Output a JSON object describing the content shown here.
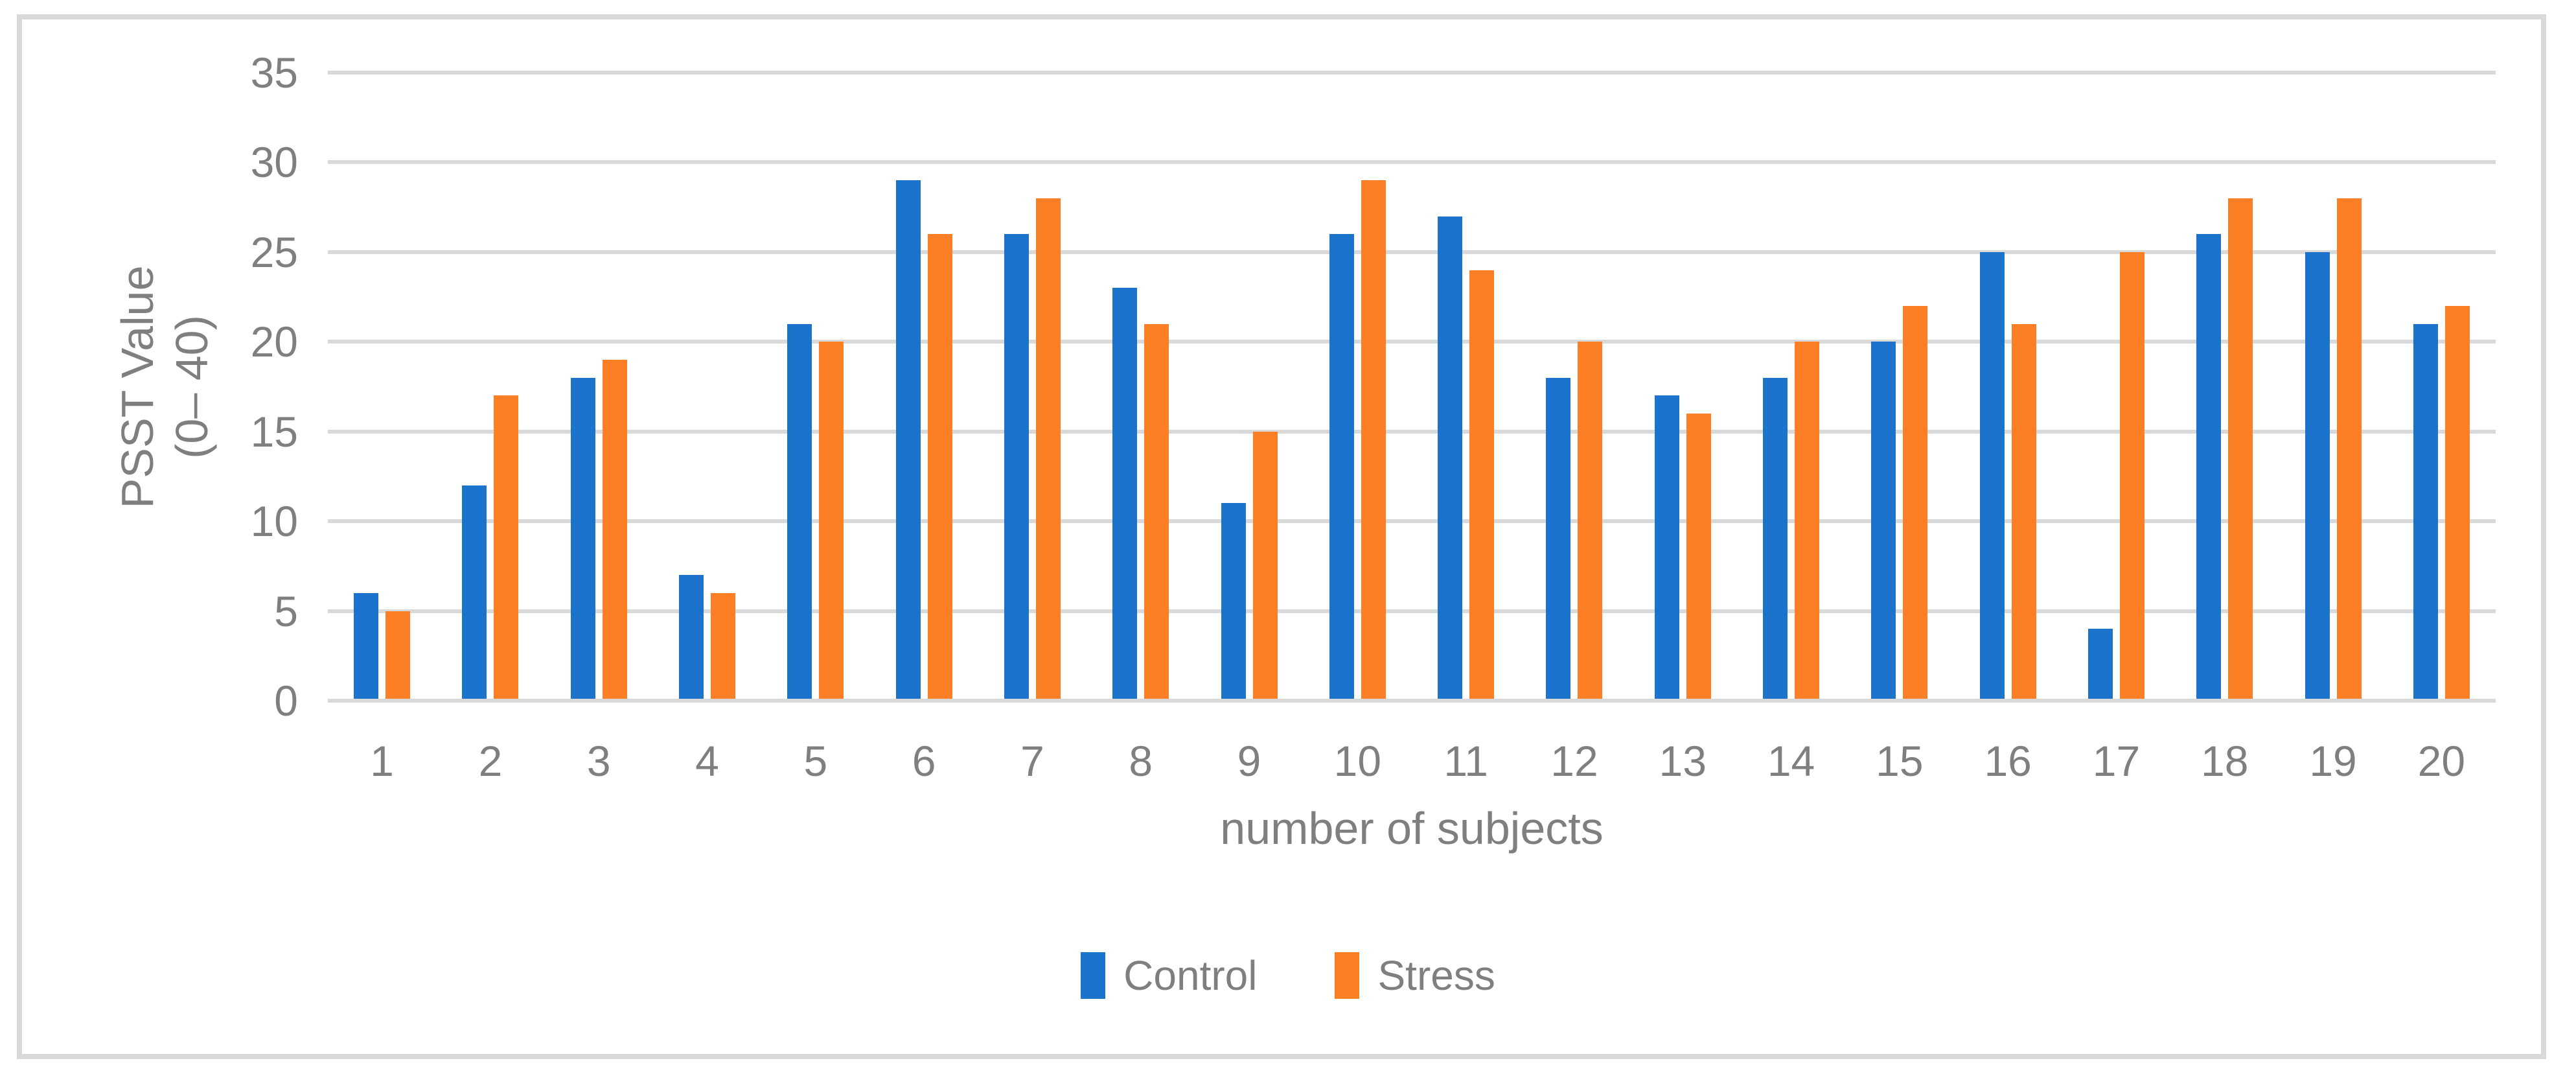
{
  "figure": {
    "background_color": "#FFFFFF",
    "frame_border_color": "#D9D9D9",
    "axis_text_color": "#7F7F7F",
    "gridline_color": "#D9D9D9"
  },
  "chart_data": {
    "type": "bar",
    "title": "",
    "xlabel": "number of subjects",
    "ylabel": "PSST Value (0– 40)",
    "ylabel_line1": "PSST Value",
    "ylabel_line2": "(0– 40)",
    "ylim": [
      0,
      35
    ],
    "yticks": [
      0,
      5,
      10,
      15,
      20,
      25,
      30,
      35
    ],
    "grid": true,
    "legend_position": "bottom",
    "categories": [
      "1",
      "2",
      "3",
      "4",
      "5",
      "6",
      "7",
      "8",
      "9",
      "10",
      "11",
      "12",
      "13",
      "14",
      "15",
      "16",
      "17",
      "18",
      "19",
      "20"
    ],
    "series": [
      {
        "name": "Control",
        "color": "#1B73CB",
        "values": [
          6,
          12,
          18,
          7,
          21,
          29,
          26,
          23,
          11,
          26,
          27,
          18,
          17,
          18,
          20,
          25,
          4,
          26,
          25,
          21
        ]
      },
      {
        "name": "Stress",
        "color": "#FC7E25",
        "values": [
          5,
          17,
          19,
          6,
          20,
          26,
          28,
          21,
          15,
          29,
          24,
          20,
          16,
          20,
          22,
          21,
          25,
          28,
          28,
          22
        ]
      }
    ]
  }
}
